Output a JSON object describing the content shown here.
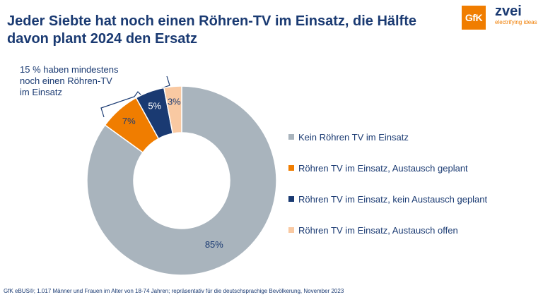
{
  "header": {
    "title_line1": "Jeder Siebte hat noch einen Röhren-TV im Einsatz, die Hälfte",
    "title_line2": "davon plant 2024 den Ersatz"
  },
  "logos": {
    "gfk": "GfK",
    "zvei_name": "zvei",
    "zvei_claim": "electrifying ideas"
  },
  "annotation": {
    "line1": "15 % haben mindestens",
    "line2": "noch einen Röhren-TV",
    "line3": "im Einsatz"
  },
  "chart_data": {
    "type": "pie",
    "style": "donut",
    "categories": [
      "Kein Röhren TV im Einsatz",
      "Röhren TV im Einsatz, Austausch geplant",
      "Röhren TV im Einsatz, kein Austausch geplant",
      "Röhren TV im Einsatz, Austausch offen"
    ],
    "values": [
      85,
      7,
      5,
      3
    ],
    "labels": [
      "85%",
      "7%",
      "5%",
      "3%"
    ],
    "colors": [
      "#a9b4bd",
      "#f07d00",
      "#1a3a72",
      "#f9c9a2"
    ],
    "legend_position": "right"
  },
  "footnote": "GfK eBUS®; 1.017 Männer und Frauen im Alter von 18-74 Jahren; repräsentativ für die deutschsprachige Bevölkerung, November 2023"
}
